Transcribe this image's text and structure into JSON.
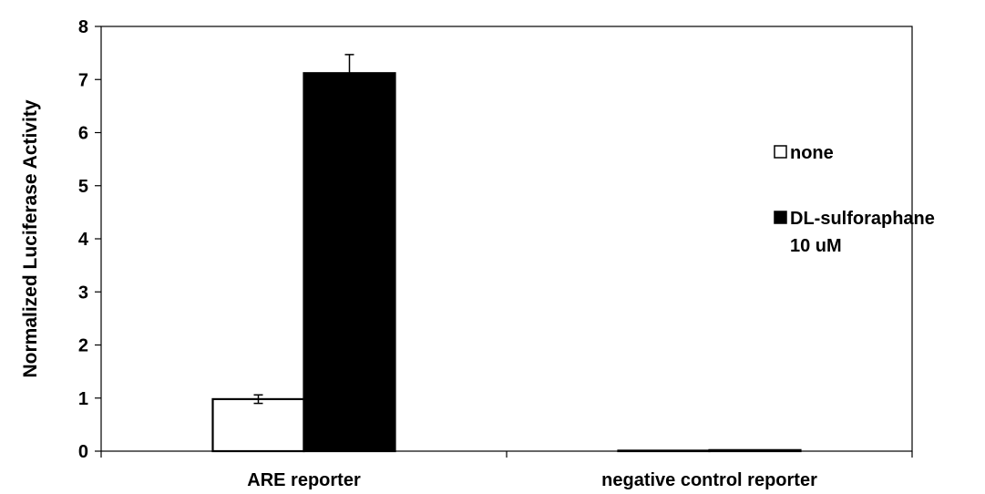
{
  "chart_data": {
    "type": "bar",
    "categories": [
      "ARE reporter",
      "negative control reporter"
    ],
    "series": [
      {
        "name": "none",
        "values": [
          0.98,
          0.01
        ],
        "errors": [
          0.08,
          0.0
        ],
        "color": "#ffffff",
        "stroke": "#000000"
      },
      {
        "name": "DL-sulforaphane 10 uM",
        "name_lines": [
          "DL-sulforaphane",
          "10 uM"
        ],
        "values": [
          7.12,
          0.02
        ],
        "errors": [
          0.35,
          0.0
        ],
        "color": "#000000",
        "stroke": "#000000"
      }
    ],
    "ylabel": "Normalized Luciferase Activity",
    "xlabel": "",
    "ylim": [
      0,
      8
    ],
    "yticks": [
      0,
      1,
      2,
      3,
      4,
      5,
      6,
      7,
      8
    ],
    "grid": false,
    "legend_position": "right"
  }
}
